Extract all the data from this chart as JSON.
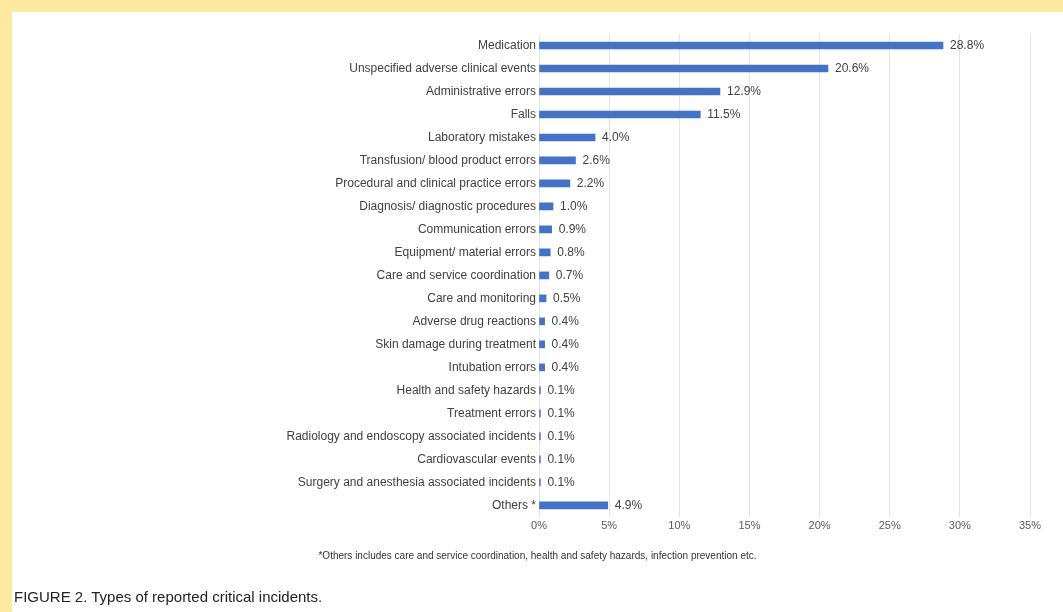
{
  "chart_data": {
    "type": "bar",
    "orientation": "horizontal",
    "title": "FIGURE 2.  Types of reported critical incidents.",
    "categories": [
      "Medication",
      "Unspecified adverse clinical events",
      "Administrative errors",
      "Falls",
      "Laboratory mistakes",
      "Transfusion/ blood product errors",
      "Procedural and clinical practice errors",
      "Diagnosis/ diagnostic procedures",
      "Communication errors",
      "Equipment/ material errors",
      "Care and service coordination",
      "Care and monitoring",
      "Adverse drug reactions",
      "Skin damage during treatment",
      "Intubation errors",
      "Health and safety hazards",
      "Treatment errors",
      "Radiology and endoscopy associated incidents",
      "Cardiovascular events",
      "Surgery and anesthesia associated incidents",
      "Others *"
    ],
    "values": [
      28.8,
      20.6,
      12.9,
      11.5,
      4.0,
      2.6,
      2.2,
      1.0,
      0.9,
      0.8,
      0.7,
      0.5,
      0.4,
      0.4,
      0.4,
      0.1,
      0.1,
      0.1,
      0.1,
      0.1,
      4.9
    ],
    "value_labels": [
      "28.8%",
      "20.6%",
      "12.9%",
      "11.5%",
      "4.0%",
      "2.6%",
      "2.2%",
      "1.0%",
      "0.9%",
      "0.8%",
      "0.7%",
      "0.5%",
      "0.4%",
      "0.4%",
      "0.4%",
      "0.1%",
      "0.1%",
      "0.1%",
      "0.1%",
      "0.1%",
      "4.9%"
    ],
    "color": "#4472c4",
    "xlim": [
      0,
      35
    ],
    "xticks": [
      {
        "value": 0,
        "label": "0%"
      },
      {
        "value": 5,
        "label": "5%"
      },
      {
        "value": 10,
        "label": "10%"
      },
      {
        "value": 15,
        "label": "15%"
      },
      {
        "value": 20,
        "label": "20%"
      },
      {
        "value": 25,
        "label": "25%"
      },
      {
        "value": 30,
        "label": "30%"
      },
      {
        "value": 35,
        "label": "35%"
      }
    ],
    "grid": "x",
    "annotations": [
      "*Others includes care and service coordination, health and safety hazards, infection prevention etc."
    ]
  }
}
